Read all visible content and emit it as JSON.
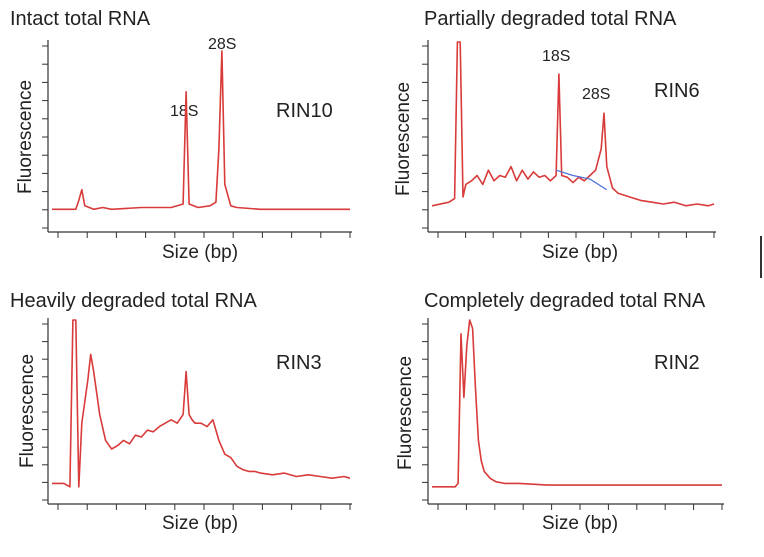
{
  "colors": {
    "trace": "#d93a3a",
    "baseline_fit": "#4a6fd6",
    "axis": "#333333",
    "text": "#222222"
  },
  "chart_data": [
    {
      "type": "line",
      "title": "Intact total RNA",
      "xlabel": "Size (bp)",
      "ylabel": "Fluorescence",
      "annotation": "RIN10",
      "xlim": [
        0,
        100
      ],
      "ylim": [
        0,
        100
      ],
      "peaks": [
        {
          "label": "18S",
          "x": 45,
          "y": 72
        },
        {
          "label": "28S",
          "x": 57,
          "y": 95
        }
      ],
      "x": [
        0,
        8,
        9,
        10,
        11,
        14,
        17,
        20,
        30,
        40,
        44,
        45,
        46,
        49,
        53,
        55,
        56,
        57,
        58,
        60,
        62,
        70,
        80,
        90,
        100
      ],
      "y": [
        6,
        6,
        11,
        17,
        8,
        6,
        7,
        6,
        7,
        7,
        9,
        72,
        9,
        7,
        8,
        10,
        40,
        95,
        20,
        8,
        7,
        6,
        6,
        6,
        6
      ]
    },
    {
      "type": "line",
      "title": "Partially degraded total RNA",
      "xlabel": "Size (bp)",
      "ylabel": "Fluorescence",
      "annotation": "RIN6",
      "xlim": [
        0,
        100
      ],
      "ylim": [
        0,
        100
      ],
      "peaks": [
        {
          "label": "18S",
          "x": 45,
          "y": 82
        },
        {
          "label": "28S",
          "x": 61,
          "y": 60
        }
      ],
      "x": [
        0,
        6,
        8,
        9,
        10,
        11,
        12,
        14,
        16,
        18,
        20,
        22,
        24,
        26,
        28,
        30,
        32,
        34,
        36,
        38,
        40,
        42,
        44,
        45,
        46,
        48,
        50,
        52,
        54,
        56,
        58,
        60,
        61,
        62,
        64,
        66,
        70,
        74,
        78,
        82,
        86,
        90,
        94,
        98,
        100
      ],
      "y": [
        8,
        10,
        12,
        100,
        100,
        13,
        20,
        22,
        25,
        20,
        28,
        22,
        25,
        24,
        30,
        22,
        28,
        23,
        27,
        24,
        25,
        22,
        25,
        82,
        25,
        24,
        21,
        24,
        22,
        25,
        28,
        40,
        60,
        30,
        18,
        15,
        13,
        11,
        10,
        9,
        10,
        8,
        9,
        8,
        9
      ],
      "baseline_fit": {
        "x": [
          44,
          50,
          56,
          62
        ],
        "y": [
          28,
          25,
          23,
          17
        ]
      }
    },
    {
      "type": "line",
      "title": "Heavily degraded total RNA",
      "xlabel": "Size (bp)",
      "ylabel": "Fluorescence",
      "annotation": "RIN3",
      "xlim": [
        0,
        100
      ],
      "ylim": [
        0,
        100
      ],
      "x": [
        0,
        4,
        6,
        7,
        8,
        9,
        10,
        12,
        13,
        14,
        16,
        18,
        20,
        22,
        24,
        26,
        28,
        30,
        32,
        34,
        36,
        38,
        40,
        42,
        44,
        45,
        46,
        47,
        48,
        50,
        52,
        54,
        55,
        56,
        58,
        60,
        62,
        64,
        66,
        68,
        70,
        74,
        78,
        82,
        86,
        90,
        94,
        98,
        100
      ],
      "y": [
        5,
        5,
        3,
        100,
        100,
        3,
        40,
        65,
        80,
        70,
        45,
        30,
        25,
        27,
        30,
        28,
        33,
        32,
        36,
        35,
        38,
        40,
        42,
        40,
        45,
        70,
        45,
        42,
        40,
        40,
        38,
        42,
        36,
        30,
        22,
        20,
        15,
        13,
        12,
        12,
        11,
        10,
        11,
        9,
        10,
        9,
        8,
        9,
        8
      ]
    },
    {
      "type": "line",
      "title": "Completely degraded total RNA",
      "xlabel": "Size (bp)",
      "ylabel": "Fluorescence",
      "annotation": "RIN2",
      "xlim": [
        0,
        100
      ],
      "ylim": [
        0,
        100
      ],
      "x": [
        0,
        8,
        9,
        10,
        11,
        12,
        13,
        14,
        15,
        16,
        17,
        18,
        20,
        22,
        25,
        30,
        40,
        50,
        60,
        70,
        80,
        90,
        100
      ],
      "y": [
        3,
        3,
        5,
        92,
        55,
        85,
        100,
        95,
        60,
        30,
        18,
        12,
        8,
        6,
        5,
        5,
        4,
        4,
        4,
        4,
        4,
        4,
        4
      ]
    }
  ]
}
